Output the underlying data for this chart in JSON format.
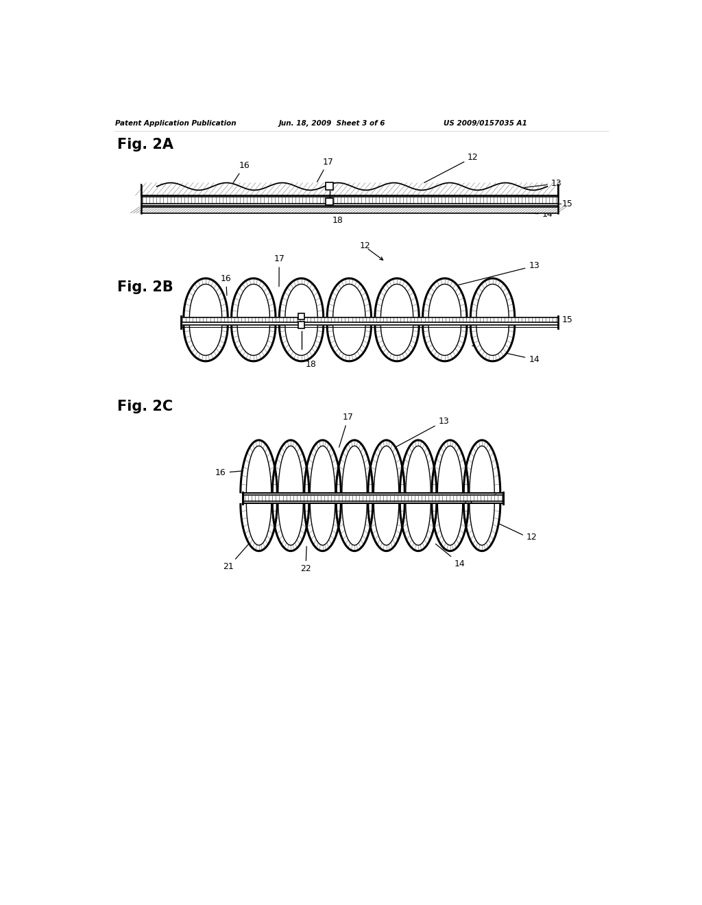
{
  "bg_color": "#ffffff",
  "header_text": "Patent Application Publication",
  "header_date": "Jun. 18, 2009  Sheet 3 of 6",
  "header_patent": "US 2009/0157035 A1",
  "fig2a_label": "Fig. 2A",
  "fig2b_label": "Fig. 2B",
  "fig2c_label": "Fig. 2C",
  "lc": "#000000"
}
